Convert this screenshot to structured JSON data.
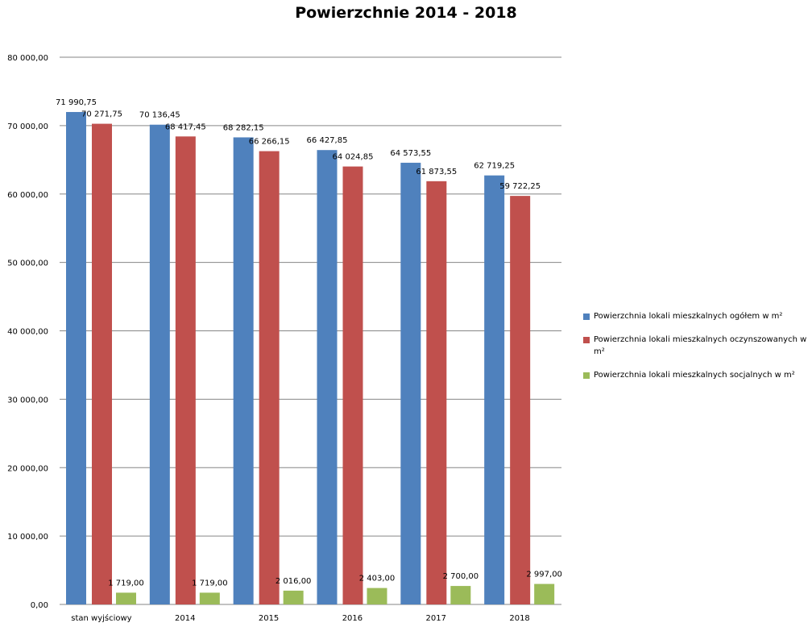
{
  "chart_data": {
    "type": "bar",
    "title": "Powierzchnie 2014 - 2018",
    "xlabel": "",
    "ylabel": "",
    "categories": [
      "stan wyjściowy",
      "2014",
      "2015",
      "2016",
      "2017",
      "2018"
    ],
    "ylim": [
      0,
      80000
    ],
    "yticks": [
      "0,00",
      "10 000,00",
      "20 000,00",
      "30 000,00",
      "40 000,00",
      "50 000,00",
      "60 000,00",
      "70 000,00",
      "80 000,00"
    ],
    "grid": true,
    "legend_position": "right",
    "series": [
      {
        "name": "Powierzchnia lokali mieszkalnych ogółem w m²",
        "color": "#4F81BD",
        "values": [
          71990.75,
          70136.45,
          68282.15,
          66427.85,
          64573.55,
          62719.25
        ],
        "labels": [
          "71 990,75",
          "70 136,45",
          "68 282,15",
          "66 427,85",
          "64 573,55",
          "62 719,25"
        ]
      },
      {
        "name": "Powierzchnia lokali mieszkalnych oczynszowanych w m²",
        "color": "#C0504D",
        "values": [
          70271.75,
          68417.45,
          66266.15,
          64024.85,
          61873.55,
          59722.25
        ],
        "labels": [
          "70 271,75",
          "68 417,45",
          "66 266,15",
          "64 024,85",
          "61 873,55",
          "59 722,25"
        ]
      },
      {
        "name": "Powierzchnia lokali mieszkalnych socjalnych w m²",
        "color": "#9BBB59",
        "values": [
          1719.0,
          1719.0,
          2016.0,
          2403.0,
          2700.0,
          2997.0
        ],
        "labels": [
          "1 719,00",
          "1 719,00",
          "2 016,00",
          "2 403,00",
          "2 700,00",
          "2 997,00"
        ]
      }
    ]
  }
}
